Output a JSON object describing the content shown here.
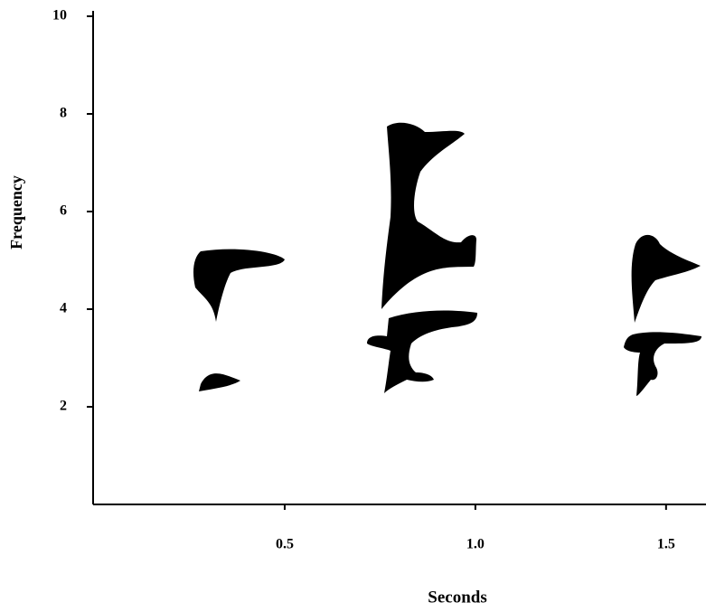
{
  "chart_data": {
    "type": "spectrogram",
    "x_label": "Seconds",
    "y_label": "Frequency",
    "xlim": [
      0,
      1.6
    ],
    "xticks": [
      0.5,
      {
        "value": 1,
        "label": "1.0"
      },
      1.5
    ],
    "ylim": [
      0,
      10
    ],
    "yticks": [
      2,
      4,
      6,
      8,
      10
    ]
  }
}
